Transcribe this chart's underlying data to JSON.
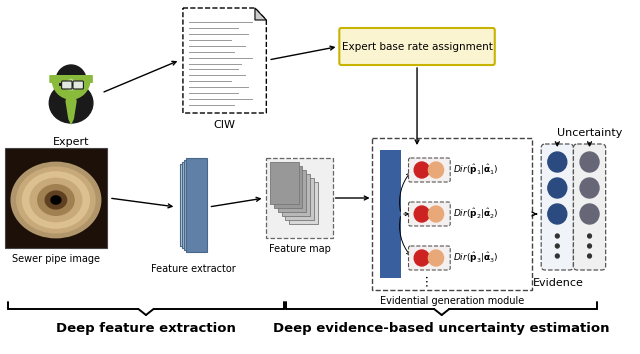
{
  "fig_width": 6.4,
  "fig_height": 3.54,
  "dpi": 100,
  "bg_color": "#ffffff",
  "title_bottom_left": "Deep feature extraction",
  "title_bottom_right": "Deep evidence-based uncertainty estimation",
  "expert_label": "Expert",
  "ciw_label": "CIW",
  "sewer_label": "Sewer pipe image",
  "feature_extractor_label": "Feature extractor",
  "feature_map_label": "Feature map",
  "evid_gen_label": "Evidential generation module",
  "evidence_label": "Evidence",
  "uncertainty_label": "Uncertainty",
  "expert_base_rate_label": "Expert base rate assignment",
  "blue_color": "#3a5f9f",
  "red_color": "#cc2222",
  "orange_color": "#e8a878",
  "dark_blue": "#2a4a80",
  "dark_gray": "#666677",
  "hat_green": "#8aba3c",
  "tie_green": "#8aba3c",
  "body_black": "#1a1a1a",
  "expert_box_fill": "#faf5d0",
  "expert_box_edge": "#c8b400",
  "fe_colors": [
    "#c8d8ea",
    "#a8c0d8",
    "#88a8c8",
    "#6890b8"
  ],
  "fm_colors": [
    "#d8d8d8",
    "#c8c8c8",
    "#b8b8b8",
    "#a8a8a8",
    "#989898"
  ]
}
